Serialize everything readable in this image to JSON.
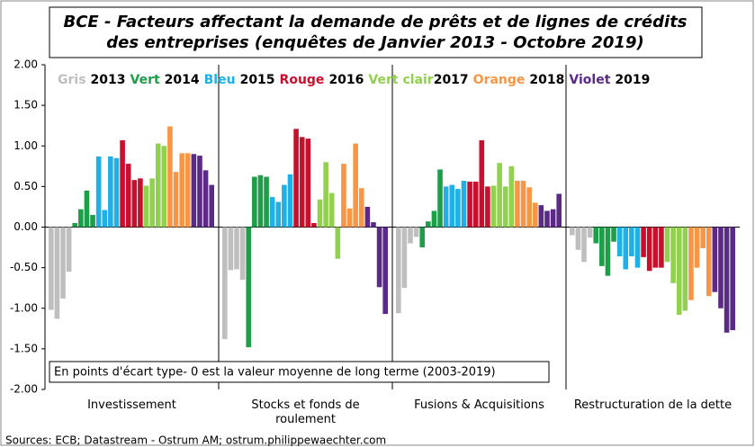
{
  "chart_data": {
    "type": "bar",
    "title": "BCE - Facteurs affectant la demande de prêts et de lignes de crédits des entreprises (enquêtes de Janvier 2013 - Octobre 2019)",
    "categories": [
      "Investissement",
      "Stocks et fonds de roulement",
      "Fusions & Acquisitions",
      "Restructuration de la dette"
    ],
    "series": [
      {
        "name": "Gris",
        "year": "2013",
        "color": "#bfbfbf",
        "values": [
          [
            -1.02,
            -1.13,
            -0.88,
            -0.55
          ],
          [
            -1.38,
            -0.53,
            -0.52,
            -0.65
          ],
          [
            -1.06,
            -0.75,
            -0.2,
            -0.12
          ],
          [
            -0.1,
            -0.28,
            -0.43,
            -0.13
          ]
        ]
      },
      {
        "name": "Vert",
        "year": "2014",
        "color": "#1e9e48",
        "values": [
          [
            0.05,
            0.22,
            0.45,
            0.15
          ],
          [
            -1.48,
            0.62,
            0.64,
            0.62
          ],
          [
            -0.25,
            0.07,
            0.2,
            0.71
          ],
          [
            -0.2,
            -0.48,
            -0.6,
            -0.18
          ]
        ]
      },
      {
        "name": "Bleu",
        "year": "2015",
        "color": "#1fb0e6",
        "values": [
          [
            0.87,
            0.21,
            0.87,
            0.85
          ],
          [
            0.37,
            0.31,
            0.52,
            0.65
          ],
          [
            0.5,
            0.52,
            0.47,
            0.57
          ],
          [
            -0.36,
            -0.52,
            -0.36,
            -0.5
          ]
        ]
      },
      {
        "name": "Rouge",
        "year": "2016",
        "color": "#c8102e",
        "values": [
          [
            1.07,
            0.78,
            0.58,
            0.6
          ],
          [
            1.21,
            1.11,
            1.09,
            0.05
          ],
          [
            0.56,
            0.56,
            1.07,
            0.5
          ],
          [
            -0.37,
            -0.54,
            -0.5,
            -0.5
          ]
        ]
      },
      {
        "name": "Vert clair",
        "year": "2017",
        "color": "#92d050",
        "values": [
          [
            0.51,
            0.6,
            1.03,
            1.0
          ],
          [
            0.34,
            0.8,
            0.42,
            -0.39
          ],
          [
            0.51,
            0.79,
            0.5,
            0.75
          ],
          [
            -0.43,
            -0.69,
            -1.08,
            -1.03
          ]
        ]
      },
      {
        "name": "Orange",
        "year": "2018",
        "color": "#f79646",
        "values": [
          [
            1.24,
            0.68,
            0.91,
            0.91
          ],
          [
            0.78,
            0.23,
            1.03,
            0.48
          ],
          [
            0.57,
            0.57,
            0.49,
            0.3
          ],
          [
            -0.9,
            -0.5,
            -0.26,
            -0.85
          ]
        ]
      },
      {
        "name": "Violet",
        "year": "2019",
        "color": "#5b2a86",
        "values": [
          [
            0.9,
            0.88,
            0.7,
            0.52
          ],
          [
            0.25,
            0.06,
            -0.74,
            -1.07
          ],
          [
            0.27,
            0.2,
            0.22,
            0.41
          ],
          [
            -0.8,
            -1.0,
            -1.3,
            -1.27
          ]
        ]
      }
    ],
    "ylim": [
      -2,
      2
    ],
    "yticks": [
      {
        "value": -2,
        "label": "-2.00"
      },
      {
        "value": -1.5,
        "label": "-1.50"
      },
      {
        "value": -1,
        "label": "-1.00"
      },
      {
        "value": -0.5,
        "label": "-0.50"
      },
      {
        "value": 0,
        "label": "0.00"
      },
      {
        "value": 0.5,
        "label": "0.50"
      },
      {
        "value": 1,
        "label": "1.00"
      },
      {
        "value": 1.5,
        "label": "1.50"
      },
      {
        "value": 2,
        "label": "2.00"
      }
    ],
    "note": "En points d'écart type- 0 est la valeur moyenne de long terme (2003-2019)",
    "source": "Sources: ECB; Datastream - Ostrum AM; ostrum.philippewaechter.com"
  }
}
